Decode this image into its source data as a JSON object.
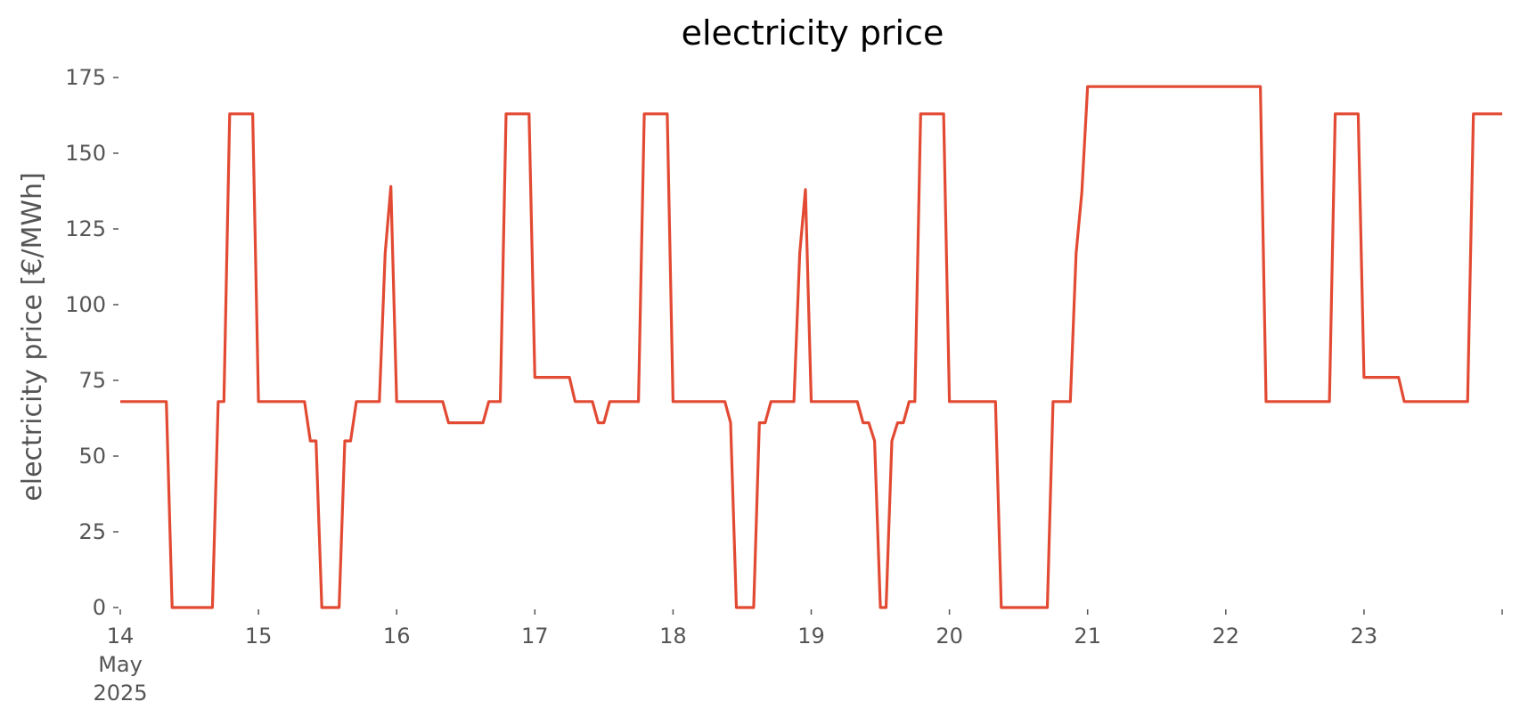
{
  "chart_data": {
    "type": "line",
    "title": "electricity price",
    "xlabel": "",
    "ylabel": "electricity price [€/MWh]",
    "ylim": [
      0,
      175
    ],
    "xlim": [
      "2025-05-14T00:00",
      "2025-05-24T00:00"
    ],
    "yticks": [
      0,
      25,
      50,
      75,
      100,
      125,
      150,
      175
    ],
    "xticks": [
      {
        "date": "2025-05-14T00:00",
        "label": "14",
        "label2": "May",
        "label3": "2025"
      },
      {
        "date": "2025-05-15T00:00",
        "label": "15"
      },
      {
        "date": "2025-05-16T00:00",
        "label": "16"
      },
      {
        "date": "2025-05-17T00:00",
        "label": "17"
      },
      {
        "date": "2025-05-18T00:00",
        "label": "18"
      },
      {
        "date": "2025-05-19T00:00",
        "label": "19"
      },
      {
        "date": "2025-05-20T00:00",
        "label": "20"
      },
      {
        "date": "2025-05-21T00:00",
        "label": "21"
      },
      {
        "date": "2025-05-22T00:00",
        "label": "22"
      },
      {
        "date": "2025-05-23T00:00",
        "label": "23"
      },
      {
        "date": "2025-05-24T00:00",
        "label": ""
      }
    ],
    "grid": false,
    "legend": "none",
    "color": "#e24a33",
    "series": [
      {
        "x": [
          "2025-05-14T00:00",
          "2025-05-14T08:00",
          "2025-05-14T09:00",
          "2025-05-14T16:00",
          "2025-05-14T17:00",
          "2025-05-14T18:00",
          "2025-05-14T19:00",
          "2025-05-14T23:00",
          "2025-05-15T00:00",
          "2025-05-15T08:00",
          "2025-05-15T09:00",
          "2025-05-15T10:00",
          "2025-05-15T11:00",
          "2025-05-15T14:00",
          "2025-05-15T15:00",
          "2025-05-15T16:00",
          "2025-05-15T17:00",
          "2025-05-15T21:00",
          "2025-05-15T22:00",
          "2025-05-15T23:00",
          "2025-05-16T00:00",
          "2025-05-16T08:00",
          "2025-05-16T09:00",
          "2025-05-16T15:00",
          "2025-05-16T16:00",
          "2025-05-16T18:00",
          "2025-05-16T19:00",
          "2025-05-16T23:00",
          "2025-05-17T00:00",
          "2025-05-17T06:00",
          "2025-05-17T07:00",
          "2025-05-17T10:00",
          "2025-05-17T11:00",
          "2025-05-17T12:00",
          "2025-05-17T13:00",
          "2025-05-17T18:00",
          "2025-05-17T19:00",
          "2025-05-17T23:00",
          "2025-05-18T00:00",
          "2025-05-18T09:00",
          "2025-05-18T10:00",
          "2025-05-18T11:00",
          "2025-05-18T14:00",
          "2025-05-18T15:00",
          "2025-05-18T16:00",
          "2025-05-18T17:00",
          "2025-05-18T21:00",
          "2025-05-18T22:00",
          "2025-05-18T23:00",
          "2025-05-19T00:00",
          "2025-05-19T08:00",
          "2025-05-19T09:00",
          "2025-05-19T10:00",
          "2025-05-19T11:00",
          "2025-05-19T12:00",
          "2025-05-19T13:00",
          "2025-05-19T14:00",
          "2025-05-19T15:00",
          "2025-05-19T16:00",
          "2025-05-19T17:00",
          "2025-05-19T18:00",
          "2025-05-19T19:00",
          "2025-05-19T23:00",
          "2025-05-20T00:00",
          "2025-05-20T08:00",
          "2025-05-20T09:00",
          "2025-05-20T17:00",
          "2025-05-20T18:00",
          "2025-05-20T21:00",
          "2025-05-20T22:00",
          "2025-05-20T23:00",
          "2025-05-21T00:00",
          "2025-05-22T06:00",
          "2025-05-22T07:00",
          "2025-05-22T18:00",
          "2025-05-22T19:00",
          "2025-05-22T23:00",
          "2025-05-23T00:00",
          "2025-05-23T06:00",
          "2025-05-23T07:00",
          "2025-05-23T18:00",
          "2025-05-23T19:00",
          "2025-05-23T23:00",
          "2025-05-24T00:00"
        ],
        "values": [
          68,
          68,
          0,
          0,
          68,
          68,
          163,
          163,
          68,
          68,
          55,
          55,
          0,
          0,
          55,
          55,
          68,
          68,
          117,
          139,
          68,
          68,
          61,
          61,
          68,
          68,
          163,
          163,
          76,
          76,
          68,
          68,
          61,
          61,
          68,
          68,
          163,
          163,
          68,
          68,
          61,
          0,
          0,
          61,
          61,
          68,
          68,
          117,
          138,
          68,
          68,
          61,
          61,
          55,
          0,
          0,
          55,
          61,
          61,
          68,
          68,
          163,
          163,
          68,
          68,
          0,
          0,
          68,
          68,
          117,
          137,
          172,
          172,
          68,
          68,
          163,
          163,
          76,
          76,
          68,
          68,
          163,
          163,
          163
        ]
      }
    ]
  }
}
